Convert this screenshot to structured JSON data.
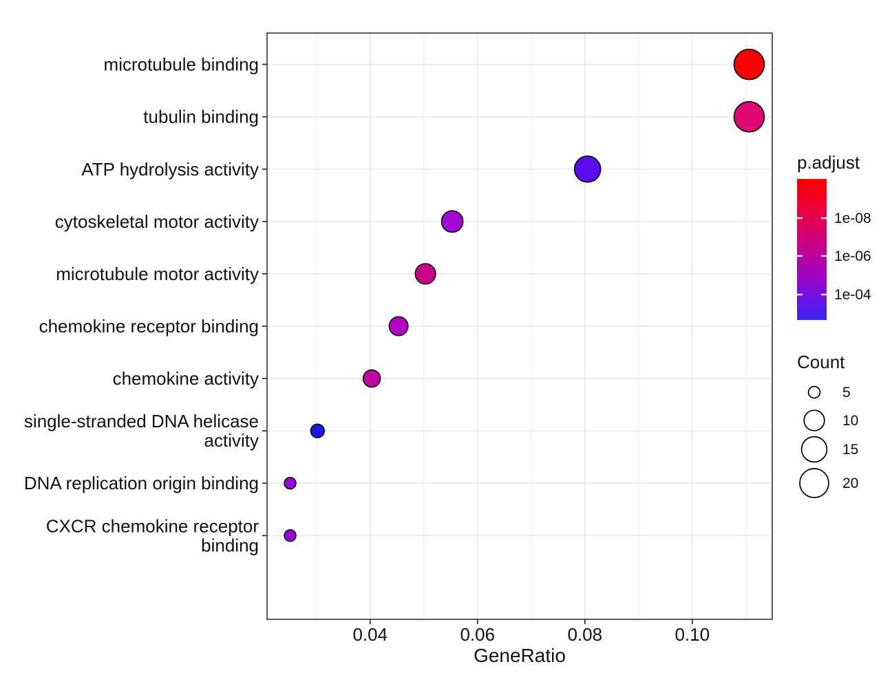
{
  "figure": {
    "kind": "GO enrichment dotplot",
    "xlabel": "GeneRatio"
  },
  "chart_data": {
    "type": "scatter",
    "title": "",
    "xlabel": "GeneRatio",
    "ylabel": "",
    "grid": true,
    "legend_position": "right",
    "xlim": [
      0.0208,
      0.1149
    ],
    "x_ticks": [
      0.04,
      0.06,
      0.08,
      0.1
    ],
    "x_tick_labels": [
      "0.04",
      "0.06",
      "0.08",
      "0.10"
    ],
    "categories": [
      "microtubule binding",
      "tubulin binding",
      "ATP hydrolysis activity",
      "cytoskeletal motor activity",
      "microtubule motor activity",
      "chemokine receptor binding",
      "chemokine activity",
      "single-stranded DNA helicase activity",
      "DNA replication origin binding",
      "CXCR chemokine receptor binding"
    ],
    "points": [
      {
        "label": "microtubule binding",
        "gene_ratio": 0.1106,
        "count": 22,
        "p_adjust": 5e-11,
        "color": "#FA0000"
      },
      {
        "label": "tubulin binding",
        "gene_ratio": 0.1106,
        "count": 22,
        "p_adjust": 4e-09,
        "color": "#E00973"
      },
      {
        "label": "ATP hydrolysis activity",
        "gene_ratio": 0.0805,
        "count": 16,
        "p_adjust": 6e-05,
        "color": "#5A0CEF"
      },
      {
        "label": "cytoskeletal motor activity",
        "gene_ratio": 0.0553,
        "count": 11,
        "p_adjust": 2e-06,
        "color": "#A306D7"
      },
      {
        "label": "microtubule motor activity",
        "gene_ratio": 0.0503,
        "count": 10,
        "p_adjust": 4e-08,
        "color": "#CC0488"
      },
      {
        "label": "chemokine receptor binding",
        "gene_ratio": 0.0453,
        "count": 9,
        "p_adjust": 5e-07,
        "color": "#B405C7"
      },
      {
        "label": "chemokine activity",
        "gene_ratio": 0.0403,
        "count": 8,
        "p_adjust": 3e-07,
        "color": "#C104A4"
      },
      {
        "label": "single-stranded DNA helicase activity",
        "label_lines": [
          "single-stranded DNA helicase",
          "activity"
        ],
        "gene_ratio": 0.0302,
        "count": 6,
        "p_adjust": 0.001,
        "color": "#1C13F2"
      },
      {
        "label": "DNA replication origin binding",
        "gene_ratio": 0.0251,
        "count": 5,
        "p_adjust": 4e-06,
        "color": "#9A07DB"
      },
      {
        "label": "CXCR chemokine receptor binding",
        "label_lines": [
          "CXCR chemokine receptor",
          "binding"
        ],
        "gene_ratio": 0.0251,
        "count": 5,
        "p_adjust": 4e-06,
        "color": "#9A07DB"
      }
    ],
    "legend_color": {
      "title": "p.adjust",
      "tick_labels": [
        "1e-08",
        "1e-06",
        "1e-04"
      ],
      "gradient_top": "#FF0000",
      "gradient_bottom": "#3823F1"
    },
    "legend_size": {
      "title": "Count",
      "items": [
        5,
        10,
        15,
        20
      ]
    }
  }
}
